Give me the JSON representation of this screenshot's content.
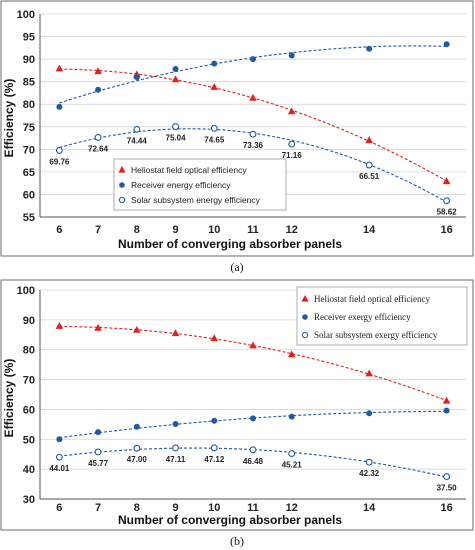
{
  "colors": {
    "heliostat": "#e0201e",
    "receiver": "#1f5aa3",
    "solar": "#1f5aa3",
    "grid": "#d4d4d4"
  },
  "chart_data": [
    {
      "type": "scatter",
      "caption": "(a)",
      "xlabel": "Number of converging absorber panels",
      "ylabel": "Efficiency (%)",
      "x": [
        6,
        7,
        8,
        9,
        10,
        11,
        12,
        14,
        16
      ],
      "xlim": [
        5.5,
        16.5
      ],
      "ylim": [
        55,
        100
      ],
      "yticks": [
        55,
        60,
        65,
        70,
        75,
        80,
        85,
        90,
        95,
        100
      ],
      "xticks": [
        6,
        7,
        8,
        9,
        10,
        11,
        12,
        14,
        16
      ],
      "legend_position": "bottom-left",
      "series": [
        {
          "name": "Heliostat field optical efficiency",
          "marker": "triangle",
          "values": [
            87.9,
            87.3,
            86.6,
            85.5,
            83.8,
            81.4,
            78.4,
            72.0,
            62.9
          ]
        },
        {
          "name": "Receiver energy efficiency",
          "marker": "filled-circle",
          "values": [
            79.4,
            83.2,
            86.0,
            87.8,
            89.0,
            90.0,
            90.8,
            92.3,
            93.3
          ]
        },
        {
          "name": "Solar subsystem energy efficiency",
          "marker": "open-circle",
          "values": [
            69.76,
            72.64,
            74.44,
            75.04,
            74.65,
            73.36,
            71.16,
            66.51,
            58.62
          ],
          "labels": [
            "69.76",
            "72.64",
            "74.44",
            "75.04",
            "74.65",
            "73.36",
            "71.16",
            "66.51",
            "58.62"
          ]
        }
      ]
    },
    {
      "type": "scatter",
      "caption": "(b)",
      "xlabel": "Number of converging absorber panels",
      "ylabel": "Efficiency (%)",
      "x": [
        6,
        7,
        8,
        9,
        10,
        11,
        12,
        14,
        16
      ],
      "xlim": [
        5.5,
        16.5
      ],
      "ylim": [
        30,
        100
      ],
      "yticks": [
        30,
        40,
        50,
        60,
        70,
        80,
        90,
        100
      ],
      "xticks": [
        6,
        7,
        8,
        9,
        10,
        11,
        12,
        14,
        16
      ],
      "legend_position": "top-right",
      "series": [
        {
          "name": "Heliostat field optical efficiency",
          "marker": "triangle",
          "values": [
            87.9,
            87.3,
            86.6,
            85.5,
            83.8,
            81.4,
            78.4,
            72.0,
            62.9
          ]
        },
        {
          "name": "Receiver exergy efficiency",
          "marker": "filled-circle",
          "values": [
            50.0,
            52.4,
            54.2,
            55.1,
            56.2,
            57.0,
            57.6,
            58.7,
            59.6
          ]
        },
        {
          "name": "Solar subsystem exergy efficiency",
          "marker": "open-circle",
          "values": [
            44.01,
            45.77,
            47.0,
            47.11,
            47.12,
            46.48,
            45.21,
            42.32,
            37.5
          ],
          "labels": [
            "44.01",
            "45.77",
            "47.00",
            "47.11",
            "47.12",
            "46.48",
            "45.21",
            "42.32",
            "37.50"
          ]
        }
      ]
    }
  ]
}
